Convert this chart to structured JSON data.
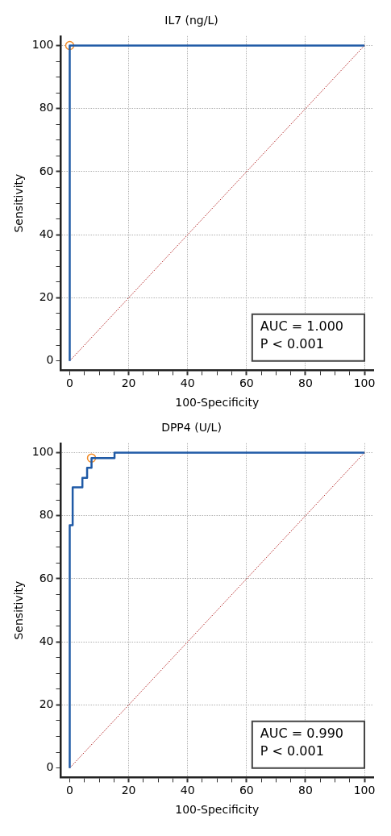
{
  "chart_data": [
    {
      "type": "line",
      "title": "IL7 (ng/L)",
      "xlabel": "100-Specificity",
      "ylabel": "Sensitivity",
      "xlim": [
        -3,
        103
      ],
      "ylim": [
        -3,
        103
      ],
      "xticks": [
        0,
        {
          "value": 5,
          "label": null
        },
        {
          "value": 10,
          "label": null
        },
        {
          "value": 15,
          "label": null
        },
        20,
        {
          "value": 25,
          "label": null
        },
        {
          "value": 30,
          "label": null
        },
        {
          "value": 35,
          "label": null
        },
        40,
        {
          "value": 45,
          "label": null
        },
        {
          "value": 50,
          "label": null
        },
        {
          "value": 55,
          "label": null
        },
        60,
        {
          "value": 65,
          "label": null
        },
        {
          "value": 70,
          "label": null
        },
        {
          "value": 75,
          "label": null
        },
        80,
        {
          "value": 85,
          "label": null
        },
        {
          "value": 90,
          "label": null
        },
        {
          "value": 95,
          "label": null
        },
        100
      ],
      "yticks": [
        0,
        {
          "value": 5,
          "label": null
        },
        {
          "value": 10,
          "label": null
        },
        {
          "value": 15,
          "label": null
        },
        20,
        {
          "value": 25,
          "label": null
        },
        {
          "value": 30,
          "label": null
        },
        {
          "value": 35,
          "label": null
        },
        40,
        {
          "value": 45,
          "label": null
        },
        {
          "value": 50,
          "label": null
        },
        {
          "value": 55,
          "label": null
        },
        60,
        {
          "value": 65,
          "label": null
        },
        {
          "value": 70,
          "label": null
        },
        {
          "value": 75,
          "label": null
        },
        80,
        {
          "value": 85,
          "label": null
        },
        {
          "value": 90,
          "label": null
        },
        {
          "value": 95,
          "label": null
        },
        100
      ],
      "grid": true,
      "annotations": [
        "AUC = 1.000",
        "P < 0.001"
      ],
      "series": [
        {
          "type": "step",
          "color": "#1f5aa6",
          "x": [
            0,
            0,
            100
          ],
          "values": [
            0,
            100,
            100
          ]
        },
        {
          "color": "#b22222",
          "line_style": "dotted",
          "x": [
            0,
            100
          ],
          "values": [
            0,
            100
          ]
        },
        {
          "type": "scatter",
          "color": "#f28c28",
          "marker": "circle",
          "x": [
            0
          ],
          "values": [
            100
          ]
        }
      ]
    },
    {
      "type": "line",
      "title": "DPP4 (U/L)",
      "xlabel": "100-Specificity",
      "ylabel": "Sensitivity",
      "xlim": [
        -3,
        103
      ],
      "ylim": [
        -3,
        103
      ],
      "xticks": [
        0,
        {
          "value": 5,
          "label": null
        },
        {
          "value": 10,
          "label": null
        },
        {
          "value": 15,
          "label": null
        },
        20,
        {
          "value": 25,
          "label": null
        },
        {
          "value": 30,
          "label": null
        },
        {
          "value": 35,
          "label": null
        },
        40,
        {
          "value": 45,
          "label": null
        },
        {
          "value": 50,
          "label": null
        },
        {
          "value": 55,
          "label": null
        },
        60,
        {
          "value": 65,
          "label": null
        },
        {
          "value": 70,
          "label": null
        },
        {
          "value": 75,
          "label": null
        },
        80,
        {
          "value": 85,
          "label": null
        },
        {
          "value": 90,
          "label": null
        },
        {
          "value": 95,
          "label": null
        },
        100
      ],
      "yticks": [
        0,
        {
          "value": 5,
          "label": null
        },
        {
          "value": 10,
          "label": null
        },
        {
          "value": 15,
          "label": null
        },
        20,
        {
          "value": 25,
          "label": null
        },
        {
          "value": 30,
          "label": null
        },
        {
          "value": 35,
          "label": null
        },
        40,
        {
          "value": 45,
          "label": null
        },
        {
          "value": 50,
          "label": null
        },
        {
          "value": 55,
          "label": null
        },
        60,
        {
          "value": 65,
          "label": null
        },
        {
          "value": 70,
          "label": null
        },
        {
          "value": 75,
          "label": null
        },
        80,
        {
          "value": 85,
          "label": null
        },
        {
          "value": 90,
          "label": null
        },
        {
          "value": 95,
          "label": null
        },
        100
      ],
      "grid": true,
      "annotations": [
        "AUC = 0.990",
        "P < 0.001"
      ],
      "series": [
        {
          "type": "step",
          "color": "#1f5aa6",
          "x": [
            0,
            0,
            1,
            4.3,
            5.9,
            7.4,
            15.2,
            100
          ],
          "values": [
            0,
            77,
            89,
            92,
            95.2,
            98.3,
            100,
            100
          ]
        },
        {
          "color": "#b22222",
          "line_style": "dotted",
          "x": [
            0,
            100
          ],
          "values": [
            0,
            100
          ]
        },
        {
          "type": "scatter",
          "color": "#f28c28",
          "marker": "circle",
          "x": [
            7.4
          ],
          "values": [
            98.3
          ]
        }
      ]
    }
  ]
}
